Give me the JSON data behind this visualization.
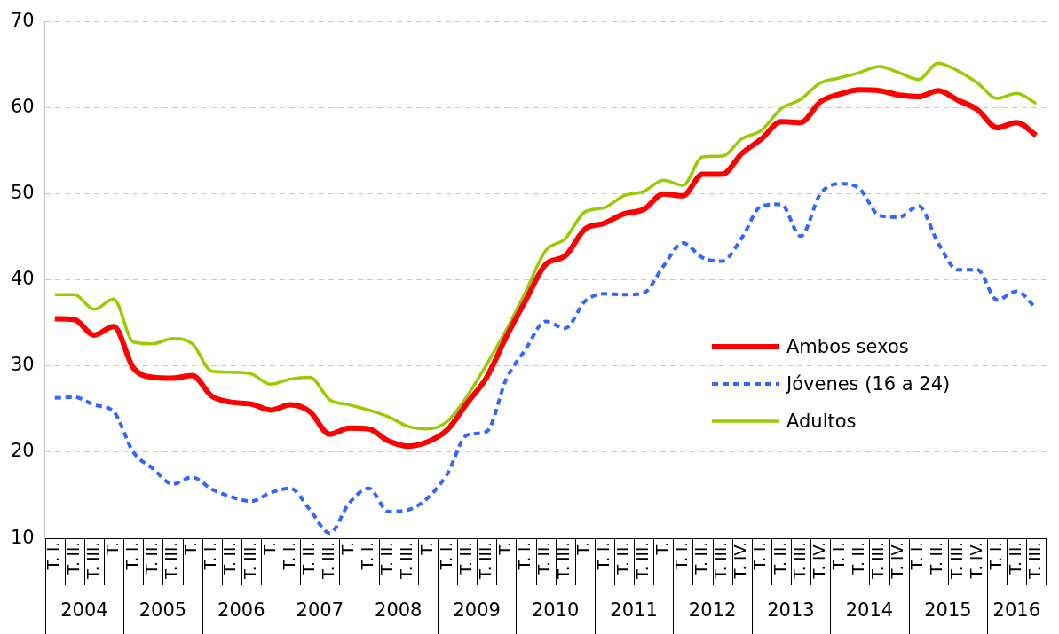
{
  "chart_data": {
    "type": "line",
    "categories": [
      "T. I.",
      "T. II.",
      "T. III.",
      "T.",
      "T. I.",
      "T. II.",
      "T. III.",
      "T.",
      "T. I.",
      "T. II.",
      "T. III.",
      "T.",
      "T. I.",
      "T. II.",
      "T. III.",
      "T.",
      "T. I.",
      "T. II.",
      "T. III.",
      "T.",
      "T. I.",
      "T. II.",
      "T. III.",
      "T.",
      "T. I.",
      "T. II.",
      "T. III.",
      "T.",
      "T. I.",
      "T. II.",
      "T. III.",
      "T.",
      "T. I.",
      "T. II.",
      "T. III.",
      "T. IV.",
      "T. I.",
      "T. II.",
      "T. III.",
      "T. IV.",
      "T. I.",
      "T. II.",
      "T. III.",
      "T. IV.",
      "T. I.",
      "T. II.",
      "T. III.",
      "T. IV.",
      "T. I.",
      "T. II.",
      "T. III."
    ],
    "series": [
      {
        "name": "Ambos sexos",
        "color": "#ff0000",
        "values": [
          35.5,
          35.4,
          33.6,
          34.6,
          29.8,
          28.7,
          28.6,
          28.9,
          26.5,
          25.8,
          25.6,
          24.9,
          25.5,
          24.7,
          22.1,
          22.8,
          22.7,
          21.3,
          20.7,
          21.2,
          22.6,
          25.7,
          28.7,
          33.4,
          37.7,
          41.8,
          42.8,
          45.9,
          46.6,
          47.7,
          48.2,
          50.0,
          49.8,
          52.3,
          52.3,
          54.7,
          56.4,
          58.4,
          58.3,
          60.7,
          61.6,
          62.1,
          62.0,
          61.5,
          61.3,
          62.0,
          60.9,
          59.8,
          57.7,
          58.3,
          56.8
        ]
      },
      {
        "name": "Jóvenes (16 a 24)",
        "color": "#3366ff",
        "line_style": "dashed",
        "values": [
          26.3,
          26.4,
          25.5,
          24.7,
          20.0,
          18.1,
          16.3,
          17.1,
          15.7,
          14.8,
          14.3,
          15.3,
          15.8,
          13.3,
          10.6,
          14.1,
          15.8,
          13.1,
          13.3,
          14.7,
          17.5,
          22.0,
          22.4,
          28.5,
          32.0,
          35.2,
          34.4,
          37.5,
          38.4,
          38.3,
          38.5,
          41.6,
          44.3,
          42.6,
          42.2,
          44.9,
          48.6,
          48.8,
          45.1,
          50.0,
          51.2,
          50.6,
          47.5,
          47.3,
          48.6,
          44.3,
          41.2,
          41.2,
          37.7,
          38.7,
          36.7
        ]
      },
      {
        "name": "Adultos",
        "color": "#99cc00",
        "values": [
          38.3,
          38.3,
          36.6,
          37.8,
          32.8,
          32.6,
          33.2,
          32.6,
          29.4,
          29.3,
          29.1,
          27.9,
          28.5,
          28.7,
          26.1,
          25.5,
          24.9,
          24.1,
          23.0,
          22.7,
          23.6,
          26.5,
          30.2,
          34.2,
          38.7,
          43.4,
          44.8,
          47.9,
          48.4,
          49.8,
          50.3,
          51.6,
          51.0,
          54.3,
          54.4,
          56.4,
          57.4,
          59.9,
          61.0,
          62.9,
          63.5,
          64.1,
          64.8,
          64.1,
          63.3,
          65.2,
          64.3,
          62.9,
          61.1,
          61.7,
          60.5
        ]
      }
    ],
    "ylim": [
      10,
      70
    ],
    "yticks": [
      10,
      20,
      30,
      40,
      50,
      60,
      70
    ],
    "grid": "y",
    "legend": "right",
    "annotations": [
      "2004",
      "2005",
      "2006",
      "2007",
      "2008",
      "2009",
      "2010",
      "2011",
      "2012",
      "2013",
      "2014",
      "2015",
      "2016"
    ]
  }
}
